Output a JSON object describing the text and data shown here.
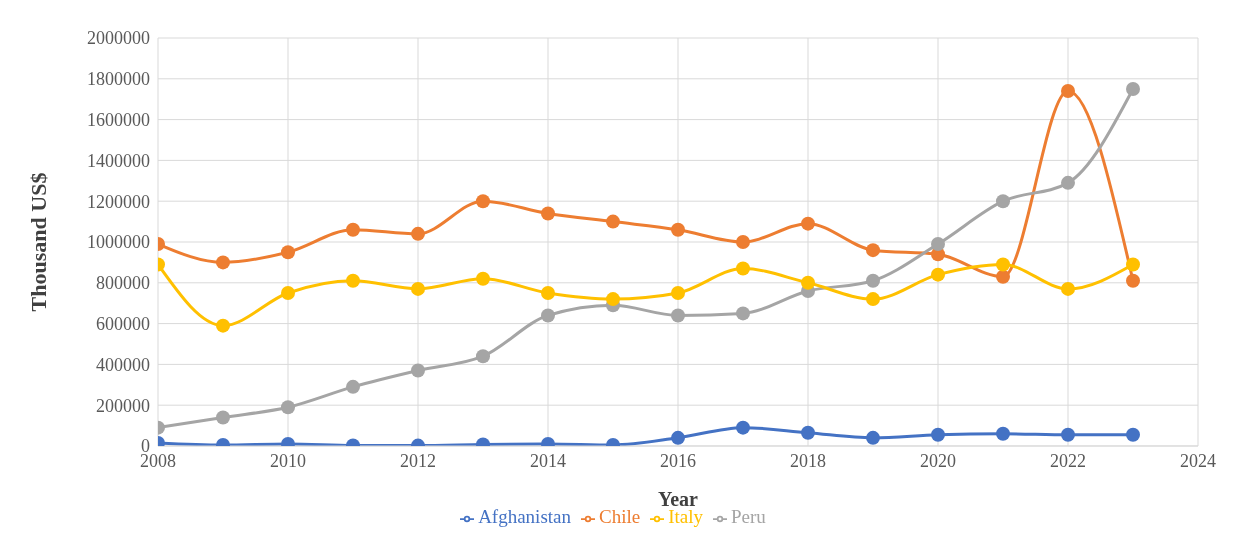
{
  "chart_data": {
    "type": "line",
    "xlabel": "Year",
    "ylabel": "Thousand US$",
    "x": [
      2008,
      2009,
      2010,
      2011,
      2012,
      2013,
      2014,
      2015,
      2016,
      2017,
      2018,
      2019,
      2020,
      2021,
      2022,
      2023
    ],
    "series": [
      {
        "name": "Afghanistan",
        "color": "#4472c4",
        "values": [
          15000,
          5000,
          10000,
          3000,
          2000,
          7000,
          10000,
          5000,
          40000,
          90000,
          65000,
          40000,
          55000,
          60000,
          55000,
          55000
        ]
      },
      {
        "name": "Chile",
        "color": "#ed7d31",
        "values": [
          990000,
          900000,
          950000,
          1060000,
          1040000,
          1200000,
          1140000,
          1100000,
          1060000,
          1000000,
          1090000,
          960000,
          940000,
          830000,
          1740000,
          810000
        ]
      },
      {
        "name": "Peru",
        "color": "#a5a5a5",
        "values": [
          90000,
          140000,
          190000,
          290000,
          370000,
          440000,
          640000,
          690000,
          640000,
          650000,
          760000,
          810000,
          990000,
          1200000,
          1290000,
          1750000
        ]
      },
      {
        "name": "Italy",
        "color": "#ffc000",
        "values": [
          890000,
          590000,
          750000,
          810000,
          770000,
          820000,
          750000,
          720000,
          750000,
          870000,
          800000,
          720000,
          840000,
          890000,
          770000,
          890000
        ]
      }
    ],
    "xlim": [
      2008,
      2024
    ],
    "xticks": [
      2008,
      2010,
      2012,
      2014,
      2016,
      2018,
      2020,
      2022,
      2024
    ],
    "ylim": [
      0,
      2000000
    ],
    "yticks": [
      0,
      200000,
      400000,
      600000,
      800000,
      1000000,
      1200000,
      1400000,
      1600000,
      1800000,
      2000000
    ],
    "grid": true,
    "legend": "bottom",
    "marker": "circle",
    "line_style": "solid"
  }
}
